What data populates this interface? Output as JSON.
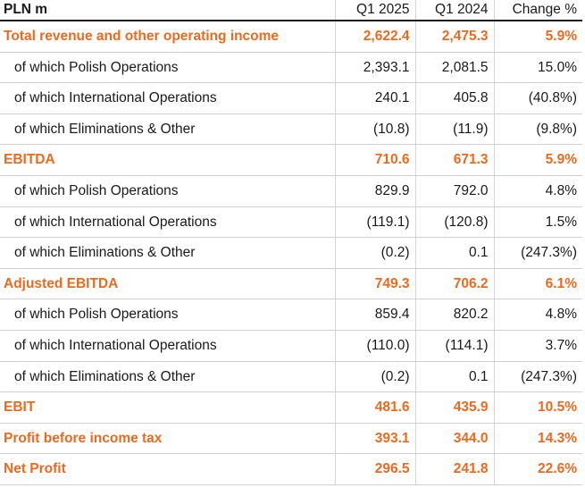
{
  "table": {
    "headers": {
      "label": "PLN m",
      "q1_2025": "Q1 2025",
      "q1_2024": "Q1 2024",
      "change": "Change %"
    },
    "rows": [
      {
        "type": "total",
        "label": "Total revenue and other operating income",
        "q1_2025": "2,622.4",
        "q1_2024": "2,475.3",
        "change": "5.9%"
      },
      {
        "type": "sub",
        "label": "of which Polish Operations",
        "q1_2025": "2,393.1",
        "q1_2024": "2,081.5",
        "change": "15.0%"
      },
      {
        "type": "sub",
        "label": "of which International Operations",
        "q1_2025": "240.1",
        "q1_2024": "405.8",
        "change": "(40.8%)"
      },
      {
        "type": "sub",
        "label": "of which Eliminations & Other",
        "q1_2025": "(10.8)",
        "q1_2024": "(11.9)",
        "change": "(9.8%)"
      },
      {
        "type": "total",
        "label": "EBITDA",
        "q1_2025": "710.6",
        "q1_2024": "671.3",
        "change": "5.9%"
      },
      {
        "type": "sub",
        "label": "of which Polish Operations",
        "q1_2025": "829.9",
        "q1_2024": "792.0",
        "change": "4.8%"
      },
      {
        "type": "sub",
        "label": "of which International Operations",
        "q1_2025": "(119.1)",
        "q1_2024": "(120.8)",
        "change": "1.5%"
      },
      {
        "type": "sub",
        "label": "of which Eliminations & Other",
        "q1_2025": "(0.2)",
        "q1_2024": "0.1",
        "change": "(247.3%)"
      },
      {
        "type": "total",
        "label": "Adjusted EBITDA",
        "q1_2025": "749.3",
        "q1_2024": "706.2",
        "change": "6.1%"
      },
      {
        "type": "sub",
        "label": "of which Polish Operations",
        "q1_2025": "859.4",
        "q1_2024": "820.2",
        "change": "4.8%"
      },
      {
        "type": "sub",
        "label": "of which International Operations",
        "q1_2025": "(110.0)",
        "q1_2024": "(114.1)",
        "change": "3.7%"
      },
      {
        "type": "sub",
        "label": "of which Eliminations & Other",
        "q1_2025": "(0.2)",
        "q1_2024": "0.1",
        "change": "(247.3%)"
      },
      {
        "type": "total",
        "label": "EBIT",
        "q1_2025": "481.6",
        "q1_2024": "435.9",
        "change": "10.5%"
      },
      {
        "type": "total",
        "label": "Profit before income tax",
        "q1_2025": "393.1",
        "q1_2024": "344.0",
        "change": "14.3%"
      },
      {
        "type": "total",
        "label": "Net Profit",
        "q1_2025": "296.5",
        "q1_2024": "241.8",
        "change": "22.6%"
      }
    ]
  },
  "colors": {
    "accent": "#ec6a1f",
    "text": "#1a1a1a",
    "grid": "#cfcfcf"
  }
}
